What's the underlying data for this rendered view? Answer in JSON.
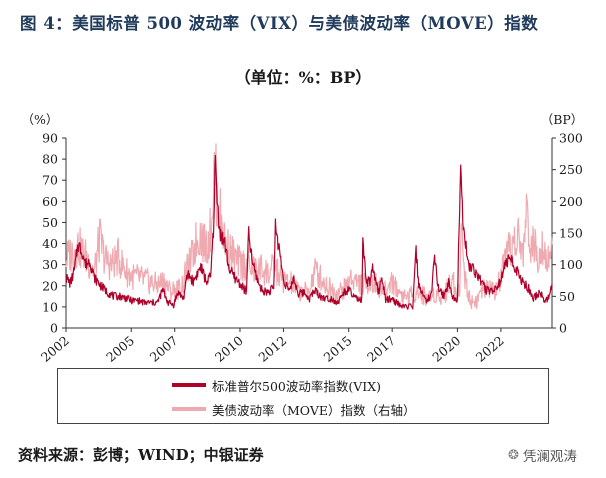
{
  "title": "图 4：美国标普 500 波动率（VIX）与美债波动率（MOVE）指数",
  "subtitle": "（单位：%：BP）",
  "source": "资料来源：彭博；WIND；中银证券",
  "watermark": "凭澜观涛",
  "colors": {
    "vix": "#b0002a",
    "move": "#eeaab0",
    "axis": "#333333",
    "title": "#1f3a5a"
  },
  "chart_data": {
    "type": "line",
    "left_unit_label": "（%）",
    "right_unit_label": "（BP）",
    "x_range": [
      2002.0,
      2024.35
    ],
    "x_ticks": [
      2002,
      2005,
      2007,
      2010,
      2012,
      2015,
      2017,
      2020,
      2022
    ],
    "x_tick_labels": [
      "2002",
      "2005",
      "2007",
      "2010",
      "2012",
      "2015",
      "2017",
      "2020",
      "2022"
    ],
    "y_left": {
      "range": [
        0,
        90
      ],
      "ticks": [
        0,
        10,
        20,
        30,
        40,
        50,
        60,
        70,
        80,
        90
      ]
    },
    "y_right": {
      "range": [
        0,
        300
      ],
      "ticks": [
        0,
        50,
        100,
        150,
        200,
        250,
        300
      ]
    },
    "series": [
      {
        "name": "标准普尔500波动率指数(VIX)",
        "axis": "left",
        "points": [
          [
            2002.0,
            24
          ],
          [
            2002.2,
            21
          ],
          [
            2002.4,
            28
          ],
          [
            2002.55,
            40
          ],
          [
            2002.75,
            36
          ],
          [
            2002.9,
            30
          ],
          [
            2003.1,
            32
          ],
          [
            2003.3,
            24
          ],
          [
            2003.6,
            20
          ],
          [
            2003.9,
            17
          ],
          [
            2004.2,
            15
          ],
          [
            2004.5,
            15
          ],
          [
            2004.8,
            14
          ],
          [
            2005.0,
            13
          ],
          [
            2005.3,
            13
          ],
          [
            2005.6,
            12
          ],
          [
            2005.9,
            12
          ],
          [
            2006.2,
            12
          ],
          [
            2006.45,
            18
          ],
          [
            2006.7,
            12
          ],
          [
            2006.95,
            11
          ],
          [
            2007.15,
            17
          ],
          [
            2007.4,
            14
          ],
          [
            2007.6,
            26
          ],
          [
            2007.85,
            22
          ],
          [
            2008.0,
            25
          ],
          [
            2008.2,
            29
          ],
          [
            2008.45,
            22
          ],
          [
            2008.65,
            24
          ],
          [
            2008.78,
            46
          ],
          [
            2008.87,
            80
          ],
          [
            2008.95,
            60
          ],
          [
            2009.1,
            45
          ],
          [
            2009.3,
            40
          ],
          [
            2009.5,
            28
          ],
          [
            2009.75,
            24
          ],
          [
            2010.0,
            21
          ],
          [
            2010.3,
            17
          ],
          [
            2010.4,
            45
          ],
          [
            2010.55,
            32
          ],
          [
            2010.8,
            23
          ],
          [
            2011.0,
            18
          ],
          [
            2011.3,
            17
          ],
          [
            2011.55,
            19
          ],
          [
            2011.63,
            48
          ],
          [
            2011.8,
            38
          ],
          [
            2012.0,
            23
          ],
          [
            2012.3,
            17
          ],
          [
            2012.45,
            24
          ],
          [
            2012.7,
            16
          ],
          [
            2012.95,
            17
          ],
          [
            2013.2,
            14
          ],
          [
            2013.45,
            18
          ],
          [
            2013.7,
            15
          ],
          [
            2013.95,
            14
          ],
          [
            2014.2,
            14
          ],
          [
            2014.5,
            12
          ],
          [
            2014.8,
            17
          ],
          [
            2015.0,
            18
          ],
          [
            2015.3,
            14
          ],
          [
            2015.6,
            13
          ],
          [
            2015.65,
            40
          ],
          [
            2015.8,
            22
          ],
          [
            2016.0,
            22
          ],
          [
            2016.1,
            28
          ],
          [
            2016.4,
            16
          ],
          [
            2016.5,
            25
          ],
          [
            2016.7,
            13
          ],
          [
            2016.95,
            14
          ],
          [
            2017.2,
            12
          ],
          [
            2017.5,
            10
          ],
          [
            2017.8,
            10
          ],
          [
            2017.95,
            10
          ],
          [
            2018.1,
            37
          ],
          [
            2018.2,
            22
          ],
          [
            2018.5,
            13
          ],
          [
            2018.8,
            15
          ],
          [
            2018.95,
            36
          ],
          [
            2019.1,
            19
          ],
          [
            2019.4,
            15
          ],
          [
            2019.6,
            22
          ],
          [
            2019.8,
            14
          ],
          [
            2020.0,
            14
          ],
          [
            2020.15,
            82
          ],
          [
            2020.25,
            50
          ],
          [
            2020.5,
            30
          ],
          [
            2020.8,
            27
          ],
          [
            2021.0,
            24
          ],
          [
            2021.3,
            18
          ],
          [
            2021.6,
            18
          ],
          [
            2021.9,
            20
          ],
          [
            2022.2,
            30
          ],
          [
            2022.45,
            33
          ],
          [
            2022.7,
            28
          ],
          [
            2022.95,
            22
          ],
          [
            2023.2,
            20
          ],
          [
            2023.5,
            14
          ],
          [
            2023.8,
            17
          ],
          [
            2024.0,
            13
          ],
          [
            2024.2,
            14
          ],
          [
            2024.35,
            21
          ]
        ]
      },
      {
        "name": "美债波动率（MOVE）指数（右轴）",
        "axis": "right",
        "points": [
          [
            2002.0,
            110
          ],
          [
            2002.3,
            120
          ],
          [
            2002.55,
            130
          ],
          [
            2002.8,
            118
          ],
          [
            2003.0,
            108
          ],
          [
            2003.3,
            88
          ],
          [
            2003.55,
            142
          ],
          [
            2003.8,
            108
          ],
          [
            2004.1,
            100
          ],
          [
            2004.4,
            112
          ],
          [
            2004.7,
            92
          ],
          [
            2005.0,
            82
          ],
          [
            2005.3,
            80
          ],
          [
            2005.6,
            76
          ],
          [
            2005.9,
            72
          ],
          [
            2006.2,
            68
          ],
          [
            2006.5,
            74
          ],
          [
            2006.8,
            58
          ],
          [
            2007.0,
            60
          ],
          [
            2007.3,
            63
          ],
          [
            2007.55,
            90
          ],
          [
            2007.8,
            112
          ],
          [
            2008.0,
            138
          ],
          [
            2008.2,
            150
          ],
          [
            2008.4,
            128
          ],
          [
            2008.6,
            140
          ],
          [
            2008.78,
            215
          ],
          [
            2008.85,
            264
          ],
          [
            2008.95,
            200
          ],
          [
            2009.15,
            170
          ],
          [
            2009.35,
            130
          ],
          [
            2009.6,
            120
          ],
          [
            2009.85,
            105
          ],
          [
            2010.1,
            100
          ],
          [
            2010.4,
            102
          ],
          [
            2010.7,
            90
          ],
          [
            2011.0,
            94
          ],
          [
            2011.3,
            86
          ],
          [
            2011.6,
            96
          ],
          [
            2011.8,
            82
          ],
          [
            2012.1,
            72
          ],
          [
            2012.4,
            70
          ],
          [
            2012.7,
            58
          ],
          [
            2012.95,
            56
          ],
          [
            2013.2,
            60
          ],
          [
            2013.45,
            92
          ],
          [
            2013.7,
            80
          ],
          [
            2013.95,
            68
          ],
          [
            2014.2,
            62
          ],
          [
            2014.5,
            55
          ],
          [
            2014.8,
            62
          ],
          [
            2015.1,
            80
          ],
          [
            2015.4,
            72
          ],
          [
            2015.7,
            68
          ],
          [
            2015.95,
            74
          ],
          [
            2016.2,
            70
          ],
          [
            2016.5,
            62
          ],
          [
            2016.75,
            56
          ],
          [
            2016.95,
            78
          ],
          [
            2017.2,
            62
          ],
          [
            2017.5,
            52
          ],
          [
            2017.8,
            50
          ],
          [
            2018.1,
            58
          ],
          [
            2018.4,
            52
          ],
          [
            2018.7,
            48
          ],
          [
            2018.95,
            54
          ],
          [
            2019.2,
            50
          ],
          [
            2019.5,
            58
          ],
          [
            2019.7,
            78
          ],
          [
            2019.95,
            62
          ],
          [
            2020.1,
            65
          ],
          [
            2020.2,
            160
          ],
          [
            2020.35,
            78
          ],
          [
            2020.6,
            42
          ],
          [
            2020.9,
            44
          ],
          [
            2021.2,
            60
          ],
          [
            2021.5,
            62
          ],
          [
            2021.8,
            58
          ],
          [
            2022.0,
            80
          ],
          [
            2022.3,
            115
          ],
          [
            2022.55,
            132
          ],
          [
            2022.8,
            140
          ],
          [
            2023.0,
            118
          ],
          [
            2023.2,
            180
          ],
          [
            2023.4,
            132
          ],
          [
            2023.7,
            118
          ],
          [
            2023.9,
            138
          ],
          [
            2024.1,
            108
          ],
          [
            2024.35,
            132
          ]
        ]
      }
    ]
  }
}
